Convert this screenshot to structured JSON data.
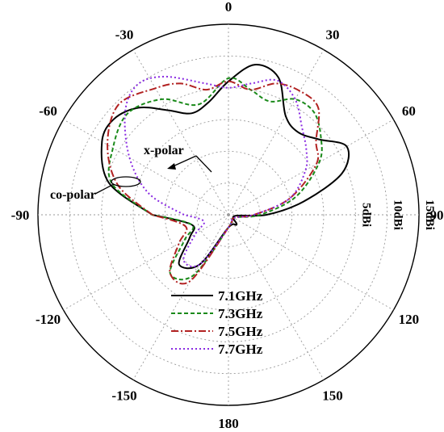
{
  "chart_data": {
    "type": "polar-line",
    "title": "",
    "angle_unit": "deg",
    "angle_zero": "top",
    "angle_direction": "clockwise",
    "angle_tick_labels": [
      {
        "angle": 0,
        "label": "0"
      },
      {
        "angle": 30,
        "label": "30"
      },
      {
        "angle": 60,
        "label": "60"
      },
      {
        "angle": 90,
        "label": "90"
      },
      {
        "angle": 120,
        "label": "120"
      },
      {
        "angle": 150,
        "label": "150"
      },
      {
        "angle": 180,
        "label": "180"
      },
      {
        "angle": -150,
        "label": "-150"
      },
      {
        "angle": -120,
        "label": "-120"
      },
      {
        "angle": -90,
        "label": "-90"
      },
      {
        "angle": -60,
        "label": "-60"
      },
      {
        "angle": -30,
        "label": "-30"
      }
    ],
    "radial_unit": "dBi",
    "radial_range": [
      -15,
      15
    ],
    "radial_grid": [
      -10,
      -5,
      0,
      5,
      10,
      15
    ],
    "radial_tick_labels": [
      {
        "value": 5,
        "label": "5dBi"
      },
      {
        "value": 10,
        "label": "10dBi"
      },
      {
        "value": 15,
        "label": "15dBi"
      }
    ],
    "grid": true,
    "legend_position": "bottom-center",
    "annotations": [
      {
        "text": "x-polar",
        "target": "cross-polar lobes"
      },
      {
        "text": "co-polar",
        "target": "main lobe"
      }
    ],
    "series": [
      {
        "name": "7.1GHz",
        "color": "#000000",
        "dash": "solid",
        "points": [
          [
            -90,
            -3
          ],
          [
            -75,
            4.5
          ],
          [
            -60,
            8
          ],
          [
            -50,
            8.5
          ],
          [
            -40,
            7
          ],
          [
            -30,
            4
          ],
          [
            -20,
            2
          ],
          [
            -10,
            3
          ],
          [
            0,
            6
          ],
          [
            10,
            9
          ],
          [
            20,
            8
          ],
          [
            30,
            3
          ],
          [
            40,
            2
          ],
          [
            50,
            3.5
          ],
          [
            60,
            6.5
          ],
          [
            70,
            4
          ],
          [
            80,
            -3
          ],
          [
            90,
            -9
          ],
          [
            100,
            -14
          ],
          [
            140,
            -13
          ],
          [
            180,
            -13
          ],
          [
            -150,
            -6
          ],
          [
            -135,
            -4
          ],
          [
            -120,
            -8
          ],
          [
            -105,
            -9
          ],
          [
            -90,
            -3
          ]
        ]
      },
      {
        "name": "7.3GHz",
        "color": "#1a8a1a",
        "dash": "5 3",
        "points": [
          [
            -90,
            -3
          ],
          [
            -75,
            4
          ],
          [
            -60,
            6
          ],
          [
            -45,
            7.5
          ],
          [
            -30,
            6
          ],
          [
            -15,
            3
          ],
          [
            0,
            6.5
          ],
          [
            10,
            5
          ],
          [
            20,
            4
          ],
          [
            30,
            6
          ],
          [
            40,
            6
          ],
          [
            50,
            4
          ],
          [
            60,
            1.5
          ],
          [
            75,
            -4
          ],
          [
            90,
            -10
          ],
          [
            120,
            -14
          ],
          [
            180,
            -13
          ],
          [
            -150,
            -4
          ],
          [
            -135,
            -2
          ],
          [
            -120,
            -7
          ],
          [
            -105,
            -9
          ],
          [
            -90,
            -3
          ]
        ]
      },
      {
        "name": "7.5GHz",
        "color": "#b22222",
        "dash": "9 3 2 3",
        "points": [
          [
            -90,
            -3
          ],
          [
            -75,
            3
          ],
          [
            -60,
            7
          ],
          [
            -45,
            9.5
          ],
          [
            -30,
            8
          ],
          [
            -20,
            7
          ],
          [
            -10,
            5
          ],
          [
            0,
            6
          ],
          [
            10,
            5
          ],
          [
            20,
            7
          ],
          [
            30,
            7.5
          ],
          [
            40,
            7
          ],
          [
            50,
            3
          ],
          [
            60,
            1
          ],
          [
            75,
            -5
          ],
          [
            90,
            -11
          ],
          [
            120,
            -14
          ],
          [
            180,
            -13
          ],
          [
            -150,
            -3
          ],
          [
            -135,
            -2
          ],
          [
            -120,
            -6
          ],
          [
            -105,
            -8
          ],
          [
            -90,
            -3
          ]
        ]
      },
      {
        "name": "7.7GHz",
        "color": "#8a2be2",
        "dash": "2 3",
        "points": [
          [
            -90,
            -8
          ],
          [
            -75,
            -2
          ],
          [
            -60,
            3
          ],
          [
            -45,
            8
          ],
          [
            -35,
            10
          ],
          [
            -25,
            9
          ],
          [
            -10,
            6
          ],
          [
            0,
            5
          ],
          [
            10,
            6
          ],
          [
            20,
            7.5
          ],
          [
            30,
            6
          ],
          [
            40,
            3
          ],
          [
            50,
            1
          ],
          [
            60,
            -1
          ],
          [
            75,
            -5
          ],
          [
            90,
            -11
          ],
          [
            120,
            -14
          ],
          [
            180,
            -13
          ],
          [
            -150,
            -6
          ],
          [
            -135,
            -5
          ],
          [
            -120,
            -9
          ],
          [
            -105,
            -11
          ],
          [
            -90,
            -8
          ]
        ]
      }
    ]
  }
}
